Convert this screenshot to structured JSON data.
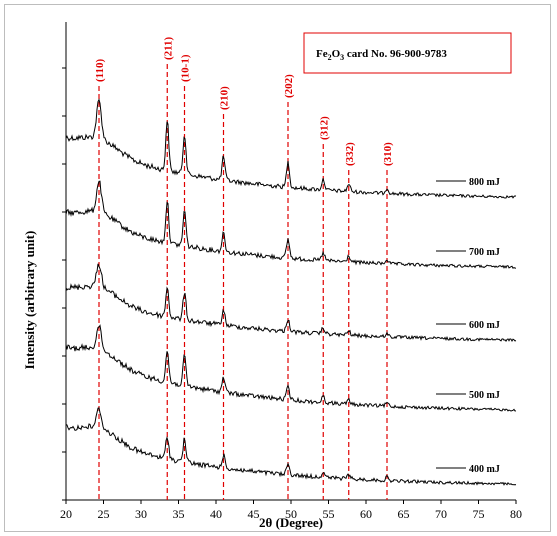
{
  "chart_data": {
    "type": "line",
    "title": "",
    "xlabel": "2θ (Degree)",
    "ylabel": "Intensity (arbitrary unit)",
    "xlim": [
      20,
      80
    ],
    "x_ticks": [
      "20",
      "25",
      "30",
      "35",
      "40",
      "45",
      "50",
      "55",
      "60",
      "65",
      "70",
      "75",
      "80"
    ],
    "legend_box": {
      "prefix": "Fe",
      "sub1": "2",
      "mid": "O",
      "sub2": "3",
      "suffix": " card No. 96-900-9783"
    },
    "reference_lines": [
      {
        "x": 24.4,
        "label": "(110)"
      },
      {
        "x": 33.5,
        "label": "(211)"
      },
      {
        "x": 35.8,
        "label": "(10-1)"
      },
      {
        "x": 41.0,
        "label": "(210)"
      },
      {
        "x": 49.6,
        "label": "(202)"
      },
      {
        "x": 54.3,
        "label": "(312)"
      },
      {
        "x": 57.7,
        "label": "(332)"
      },
      {
        "x": 62.8,
        "label": "(310)"
      }
    ],
    "series": [
      {
        "name": "800 mJ",
        "peak_heights": [
          0.9,
          1.2,
          0.95,
          0.55,
          0.6,
          0.25,
          0.18,
          0.12
        ]
      },
      {
        "name": "700 mJ",
        "peak_heights": [
          0.75,
          1.0,
          0.85,
          0.45,
          0.45,
          0.18,
          0.14,
          0.1
        ]
      },
      {
        "name": "600 mJ",
        "peak_heights": [
          0.55,
          0.7,
          0.65,
          0.35,
          0.3,
          0.14,
          0.1,
          0.08
        ]
      },
      {
        "name": "500 mJ",
        "peak_heights": [
          0.55,
          0.75,
          0.7,
          0.35,
          0.3,
          0.14,
          0.1,
          0.08
        ]
      },
      {
        "name": "400 mJ",
        "peak_heights": [
          0.45,
          0.55,
          0.55,
          0.3,
          0.25,
          0.12,
          0.1,
          0.08
        ]
      }
    ],
    "colors": {
      "reference": "#e00000",
      "pattern": "#000000"
    }
  }
}
